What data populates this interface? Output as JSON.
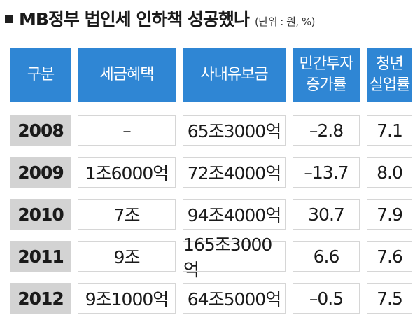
{
  "title": "MB정부 법인세 인하책 성공했나",
  "unit": "(단위 : 원, %)",
  "headers": {
    "category": "구분",
    "tax_benefit": "세금혜택",
    "retained_earnings": "사내유보금",
    "private_investment_line1": "민간투자",
    "private_investment_line2": "증가률",
    "youth_unemployment_line1": "청년",
    "youth_unemployment_line2": "실업률"
  },
  "chart_data": {
    "type": "table",
    "title": "MB정부 법인세 인하책 성공했나",
    "columns": [
      "구분",
      "세금혜택",
      "사내유보금",
      "민간투자 증가률",
      "청년 실업률"
    ],
    "rows": [
      {
        "year": "2008",
        "tax_benefit": "–",
        "retained_earnings": "65조3000억",
        "private_investment_growth": "–2.8",
        "youth_unemployment": "7.1"
      },
      {
        "year": "2009",
        "tax_benefit": "1조6000억",
        "retained_earnings": "72조4000억",
        "private_investment_growth": "–13.7",
        "youth_unemployment": "8.0"
      },
      {
        "year": "2010",
        "tax_benefit": "7조",
        "retained_earnings": "94조4000억",
        "private_investment_growth": "30.7",
        "youth_unemployment": "7.9"
      },
      {
        "year": "2011",
        "tax_benefit": "9조",
        "retained_earnings": "165조3000억",
        "private_investment_growth": "6.6",
        "youth_unemployment": "7.6"
      },
      {
        "year": "2012",
        "tax_benefit": "9조1000억",
        "retained_earnings": "64조5000억",
        "private_investment_growth": "–0.5",
        "youth_unemployment": "7.5"
      }
    ]
  }
}
